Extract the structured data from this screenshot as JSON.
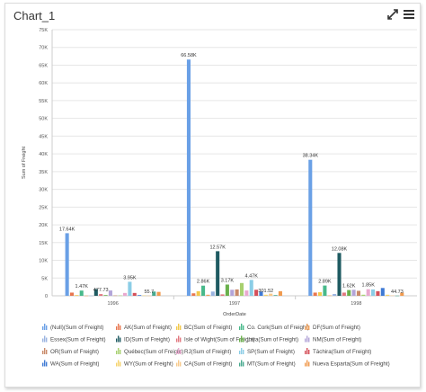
{
  "widget": {
    "title": "Chart_1",
    "icons": [
      "expand-icon",
      "menu-icon"
    ]
  },
  "chart_data": {
    "type": "bar",
    "categories": [
      "1996",
      "1997",
      "1998"
    ],
    "xlabel": "OrderDate",
    "ylabel": "Sum of Freight",
    "ylim": [
      0,
      75000
    ],
    "yticks": [
      "0",
      "5K",
      "10K",
      "15K",
      "20K",
      "25K",
      "30K",
      "35K",
      "40K",
      "45K",
      "50K",
      "55K",
      "60K",
      "65K",
      "70K",
      "75K"
    ],
    "grid": true,
    "legend_position": "bottom",
    "series": [
      {
        "name": "(Null)(Sum of Freight)",
        "color": "#6aa0e6",
        "values": [
          17640,
          66580,
          38340
        ]
      },
      {
        "name": "AK(Sum of Freight)",
        "color": "#e8764f",
        "values": [
          900,
          700,
          900
        ]
      },
      {
        "name": "BC(Sum of Freight)",
        "color": "#f2c94c",
        "values": [
          200,
          1300,
          1000
        ]
      },
      {
        "name": "Co. Cork(Sum of Freight)",
        "color": "#48b98a",
        "values": [
          1470,
          2860,
          2890
        ]
      },
      {
        "name": "DF(Sum of Freight)",
        "color": "#f0a05a",
        "values": [
          50,
          300,
          100
        ]
      },
      {
        "name": "Essex(Sum of Freight)",
        "color": "#9ab3e0",
        "values": [
          50,
          1200,
          500
        ]
      },
      {
        "name": "ID(Sum of Freight)",
        "color": "#1f5b62",
        "values": [
          1900,
          12570,
          12080
        ]
      },
      {
        "name": "Isle of Wight(Sum of Freight)",
        "color": "#e1767e",
        "values": [
          477.73,
          400,
          900
        ]
      },
      {
        "name": "Lara(Sum of Freight)",
        "color": "#6ab04c",
        "values": [
          200,
          3170,
          1620
        ]
      },
      {
        "name": "NM(Sum of Freight)",
        "color": "#b3a5d8",
        "values": [
          1500,
          1700,
          1700
        ]
      },
      {
        "name": "OR(Sum of Freight)",
        "color": "#c98a6a",
        "values": [
          100,
          1800,
          1400
        ]
      },
      {
        "name": "Québec(Sum of Freight)",
        "color": "#a7d06f",
        "values": [
          100,
          3600,
          300
        ]
      },
      {
        "name": "RJ(Sum of Freight)",
        "color": "#e9a9cf",
        "values": [
          800,
          1500,
          1850
        ]
      },
      {
        "name": "SP(Sum of Freight)",
        "color": "#8bcde6",
        "values": [
          3950,
          4470,
          1800
        ]
      },
      {
        "name": "Táchira(Sum of Freight)",
        "color": "#d4505a",
        "values": [
          800,
          1700,
          1300
        ]
      },
      {
        "name": "WA(Sum of Freight)",
        "color": "#3f7ad4",
        "values": [
          200,
          1200,
          2200
        ]
      },
      {
        "name": "WY(Sum of Freight)",
        "color": "#f6d36b",
        "values": [
          100,
          301.52,
          300
        ]
      },
      {
        "name": "CA(Sum of Freight)",
        "color": "#f7c98a",
        "values": [
          55.7,
          600,
          100
        ]
      },
      {
        "name": "MT(Sum of Freight)",
        "color": "#47a98e",
        "values": [
          1200,
          200,
          44.73
        ]
      },
      {
        "name": "Nueva Esparta(Sum of Freight)",
        "color": "#f09a4e",
        "values": [
          1100,
          1300,
          900
        ]
      }
    ],
    "data_labels": [
      {
        "series": 0,
        "category": 0,
        "text": "17.64K"
      },
      {
        "series": 3,
        "category": 0,
        "text": "1.47K"
      },
      {
        "series": 7,
        "category": 0,
        "text": "477.73"
      },
      {
        "series": 13,
        "category": 0,
        "text": "3.95K"
      },
      {
        "series": 17,
        "category": 0,
        "text": "55.7"
      },
      {
        "series": 0,
        "category": 1,
        "text": "66.58K"
      },
      {
        "series": 6,
        "category": 1,
        "text": "12.57K"
      },
      {
        "series": 3,
        "category": 1,
        "text": "2.86K"
      },
      {
        "series": 8,
        "category": 1,
        "text": "3.17K"
      },
      {
        "series": 13,
        "category": 1,
        "text": "4.47K"
      },
      {
        "series": 16,
        "category": 1,
        "text": "301.52"
      },
      {
        "series": 0,
        "category": 2,
        "text": "38.34K"
      },
      {
        "series": 6,
        "category": 2,
        "text": "12.08K"
      },
      {
        "series": 3,
        "category": 2,
        "text": "2.89K"
      },
      {
        "series": 8,
        "category": 2,
        "text": "1.62K"
      },
      {
        "series": 12,
        "category": 2,
        "text": "1.85K"
      },
      {
        "series": 18,
        "category": 2,
        "text": "44.73"
      }
    ]
  }
}
